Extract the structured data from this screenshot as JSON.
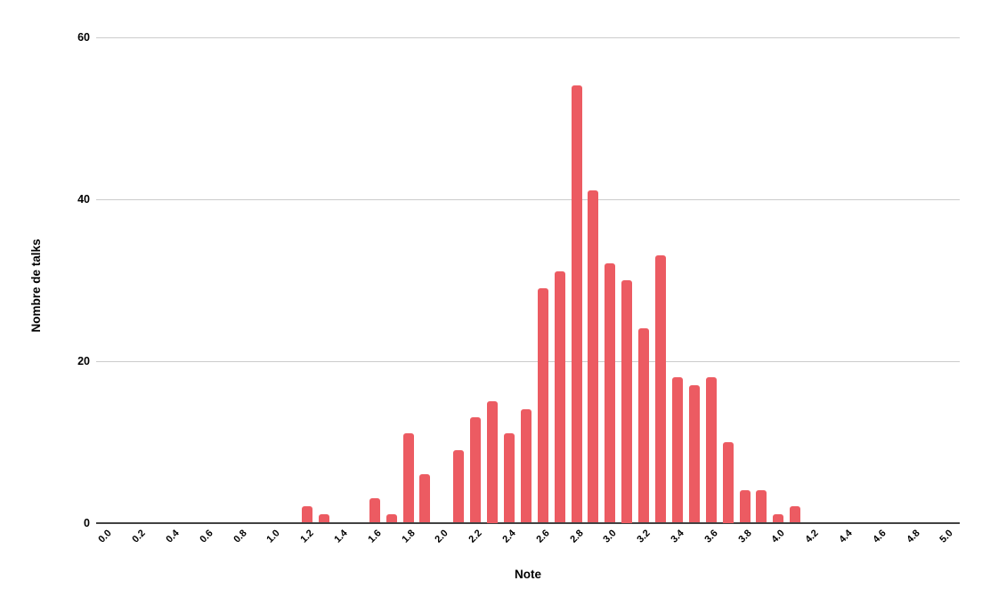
{
  "chart_data": {
    "type": "bar",
    "xlabel": "Note",
    "ylabel": "Nombre de talks",
    "bin_width": 0.1,
    "xlim": [
      0.0,
      5.0
    ],
    "ylim": [
      0,
      60
    ],
    "grid": "horizontal",
    "legend": "none",
    "categories": [
      "0.0",
      "0.1",
      "0.2",
      "0.3",
      "0.4",
      "0.5",
      "0.6",
      "0.7",
      "0.8",
      "0.9",
      "1.0",
      "1.1",
      "1.2",
      "1.3",
      "1.4",
      "1.5",
      "1.6",
      "1.7",
      "1.8",
      "1.9",
      "2.0",
      "2.1",
      "2.2",
      "2.3",
      "2.4",
      "2.5",
      "2.6",
      "2.7",
      "2.8",
      "2.9",
      "3.0",
      "3.1",
      "3.2",
      "3.3",
      "3.4",
      "3.5",
      "3.6",
      "3.7",
      "3.8",
      "3.9",
      "4.0",
      "4.1",
      "4.2",
      "4.3",
      "4.4",
      "4.5",
      "4.6",
      "4.7",
      "4.8",
      "4.9",
      "5.0"
    ],
    "values": [
      0,
      0,
      0,
      0,
      0,
      0,
      0,
      0,
      0,
      0,
      0,
      0,
      2,
      1,
      0,
      0,
      3,
      1,
      11,
      6,
      0,
      9,
      13,
      15,
      11,
      14,
      29,
      31,
      54,
      41,
      32,
      30,
      24,
      33,
      18,
      17,
      18,
      10,
      4,
      4,
      1,
      2,
      0,
      0,
      0,
      0,
      0,
      0,
      0,
      0,
      0
    ],
    "x_tick_labels": [
      "0.0",
      "0.2",
      "0.4",
      "0.6",
      "0.8",
      "1.0",
      "1.2",
      "1.4",
      "1.6",
      "1.8",
      "2.0",
      "2.2",
      "2.4",
      "2.6",
      "2.8",
      "3.0",
      "3.2",
      "3.4",
      "3.6",
      "3.8",
      "4.0",
      "4.2",
      "4.4",
      "4.6",
      "4.8",
      "5.0"
    ],
    "y_tick_labels": [
      "0",
      "20",
      "40",
      "60"
    ],
    "y_tick_values": [
      0,
      20,
      40,
      60
    ],
    "colors": {
      "bar": "#EC5B62",
      "gridline": "#CCCCCC",
      "axis_line": "#424242",
      "label_text": "#000000",
      "background": "#FFFFFF"
    }
  }
}
